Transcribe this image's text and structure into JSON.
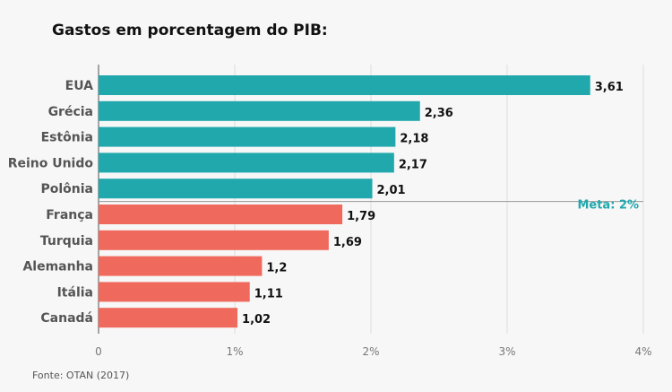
{
  "chart_data": {
    "type": "bar",
    "orientation": "horizontal",
    "title": "Gastos em porcentagem do PIB:",
    "categories": [
      "EUA",
      "Grécia",
      "Estônia",
      "Reino Unido",
      "Polônia",
      "França",
      "Turquia",
      "Alemanha",
      "Itália",
      "Canadá"
    ],
    "values": [
      3.61,
      2.36,
      2.18,
      2.17,
      2.01,
      1.79,
      1.69,
      1.2,
      1.11,
      1.02
    ],
    "value_labels": [
      "3,61",
      "2,36",
      "2,18",
      "2,17",
      "2,01",
      "1,79",
      "1,69",
      "1,2",
      "1,11",
      "1,02"
    ],
    "xlim": [
      0,
      4
    ],
    "xticks": [
      0,
      1,
      2,
      3,
      4
    ],
    "xtick_labels": [
      "0",
      "1%",
      "2%",
      "3%",
      "4%"
    ],
    "target": {
      "value": 2,
      "label": "Meta: 2%"
    },
    "colors": {
      "above_target": "#20a8ad",
      "below_target": "#ef6a5c",
      "grid": "#dcdcdc",
      "target_text": "#20a8ad"
    },
    "source": "Fonte: OTAN (2017)"
  }
}
